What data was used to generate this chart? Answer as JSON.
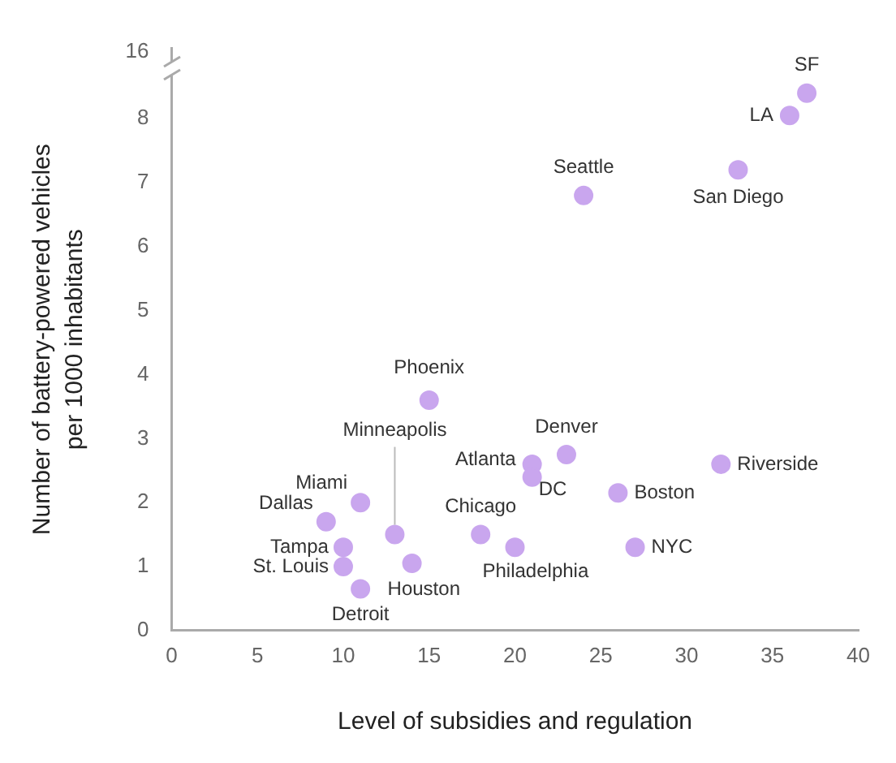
{
  "chart_data": {
    "type": "scatter",
    "xlabel": "Level of subsidies and regulation",
    "ylabel": "Number of battery-powered vehicles per 1000 inhabitants",
    "x": [
      37,
      36,
      33,
      24,
      15,
      23,
      21,
      21,
      32,
      26,
      27,
      11,
      9,
      13,
      18,
      20,
      10,
      10,
      14,
      11
    ],
    "series": [
      {
        "color": "#c9a6ee",
        "values": [
          8.4,
          8.05,
          7.2,
          6.8,
          3.6,
          2.75,
          2.6,
          2.4,
          2.6,
          2.15,
          1.3,
          2.0,
          1.7,
          1.5,
          1.5,
          1.3,
          1.3,
          1.0,
          1.05,
          0.65
        ]
      }
    ],
    "xlim": [
      0,
      40
    ],
    "xticks": [
      0,
      5,
      10,
      15,
      20,
      25,
      30,
      35,
      40
    ],
    "ylim": [
      0,
      9.1
    ],
    "yticks": [
      0,
      1,
      2,
      3,
      4,
      5,
      6,
      7,
      8
    ],
    "grid": false,
    "legend": false,
    "marker": "circle",
    "annotations": [
      "16",
      {
        "text": "SF",
        "x": 37,
        "y": 8.4
      },
      {
        "text": "LA",
        "x": 36,
        "y": 8.05
      },
      {
        "text": "San Diego",
        "x": 33,
        "y": 7.2
      },
      {
        "text": "Seattle",
        "x": 24,
        "y": 6.8
      },
      {
        "text": "Phoenix",
        "x": 15,
        "y": 3.6
      },
      {
        "text": "Denver",
        "x": 23,
        "y": 2.75
      },
      {
        "text": "Atlanta",
        "x": 21,
        "y": 2.6
      },
      {
        "text": "DC",
        "x": 21,
        "y": 2.4
      },
      {
        "text": "Riverside",
        "x": 32,
        "y": 2.6
      },
      {
        "text": "Boston",
        "x": 26,
        "y": 2.15
      },
      {
        "text": "NYC",
        "x": 27,
        "y": 1.3
      },
      {
        "text": "Miami",
        "x": 11,
        "y": 2.0
      },
      {
        "text": "Dallas",
        "x": 9,
        "y": 1.7
      },
      {
        "text": "Minneapolis",
        "x": 13,
        "y": 1.5
      },
      {
        "text": "Chicago",
        "x": 18,
        "y": 1.5
      },
      {
        "text": "Philadelphia",
        "x": 20,
        "y": 1.3
      },
      {
        "text": "Tampa",
        "x": 10,
        "y": 1.3
      },
      {
        "text": "St. Louis",
        "x": 10,
        "y": 1.0
      },
      {
        "text": "Houston",
        "x": 14,
        "y": 1.05
      },
      {
        "text": "Detroit",
        "x": 11,
        "y": 0.65
      }
    ]
  }
}
